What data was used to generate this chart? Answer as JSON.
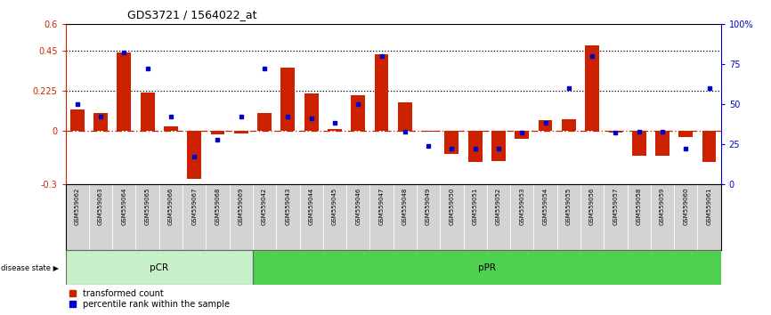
{
  "title": "GDS3721 / 1564022_at",
  "samples": [
    "GSM559062",
    "GSM559063",
    "GSM559064",
    "GSM559065",
    "GSM559066",
    "GSM559067",
    "GSM559068",
    "GSM559069",
    "GSM559042",
    "GSM559043",
    "GSM559044",
    "GSM559045",
    "GSM559046",
    "GSM559047",
    "GSM559048",
    "GSM559049",
    "GSM559050",
    "GSM559051",
    "GSM559052",
    "GSM559053",
    "GSM559054",
    "GSM559055",
    "GSM559056",
    "GSM559057",
    "GSM559058",
    "GSM559059",
    "GSM559060",
    "GSM559061"
  ],
  "red_values": [
    0.12,
    0.1,
    0.44,
    0.215,
    0.025,
    -0.27,
    -0.02,
    -0.015,
    0.1,
    0.355,
    0.21,
    0.01,
    0.2,
    0.43,
    0.16,
    -0.005,
    -0.13,
    -0.175,
    -0.17,
    -0.045,
    0.06,
    0.065,
    0.48,
    -0.01,
    -0.14,
    -0.14,
    -0.035,
    -0.175
  ],
  "blue_values_pct": [
    50,
    42,
    82,
    72,
    42,
    17,
    28,
    42,
    72,
    42,
    41,
    38,
    50,
    80,
    33,
    24,
    22,
    22,
    22,
    32,
    38,
    60,
    80,
    32,
    33,
    33,
    22,
    60
  ],
  "pCR_count": 8,
  "pPR_count": 20,
  "ylim_left": [
    -0.3,
    0.6
  ],
  "ylim_right": [
    0,
    100
  ],
  "yticks_left": [
    -0.3,
    0.0,
    0.225,
    0.45,
    0.6
  ],
  "ytick_labels_left": [
    "-0.3",
    "0",
    "0.225",
    "0.45",
    "0.6"
  ],
  "yticks_right": [
    0,
    25,
    50,
    75,
    100
  ],
  "ytick_labels_right": [
    "0",
    "25",
    "50",
    "75",
    "100%"
  ],
  "hlines": [
    0.225,
    0.45
  ],
  "bar_color": "#cc2200",
  "dot_color": "#0000cc",
  "bg_label": "#d3d3d3",
  "pCR_color": "#c8f0c8",
  "pPR_color": "#50d050",
  "disease_state_text": "disease state ▶",
  "legend_red": "transformed count",
  "legend_blue": "percentile rank within the sample",
  "fig_width": 8.66,
  "fig_height": 3.54
}
